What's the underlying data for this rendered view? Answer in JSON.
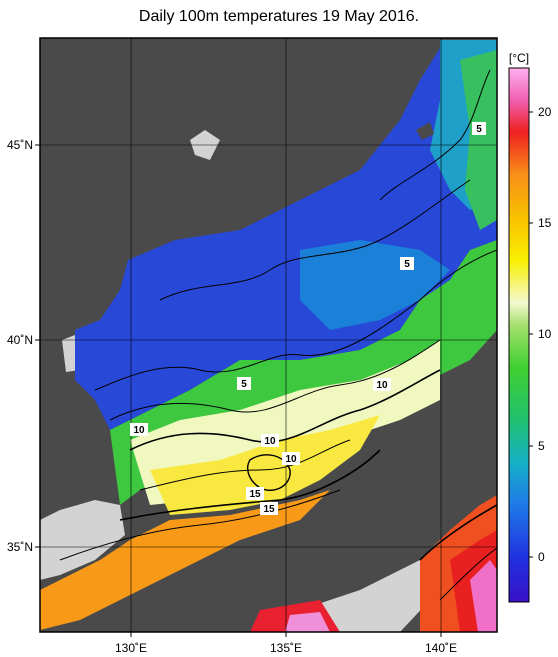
{
  "title": "Daily 100m temperatures 19 May 2016.",
  "colorbar": {
    "unit_label": "[°C]",
    "ticks": [
      "20",
      "15",
      "10",
      "5",
      "0"
    ]
  },
  "axes": {
    "lon_ticks": [
      "130˚E",
      "135˚E",
      "140˚E"
    ],
    "lat_ticks": [
      "45˚N",
      "40˚N",
      "35˚N"
    ]
  },
  "contour_labels": [
    "5",
    "5",
    "5",
    "10",
    "10",
    "10",
    "10",
    "15",
    "15"
  ],
  "colors": {
    "land": "#4a4a4a",
    "no_data": "#d3d3d3",
    "cold": "#2a2ad0",
    "warm": "#e83020"
  }
}
